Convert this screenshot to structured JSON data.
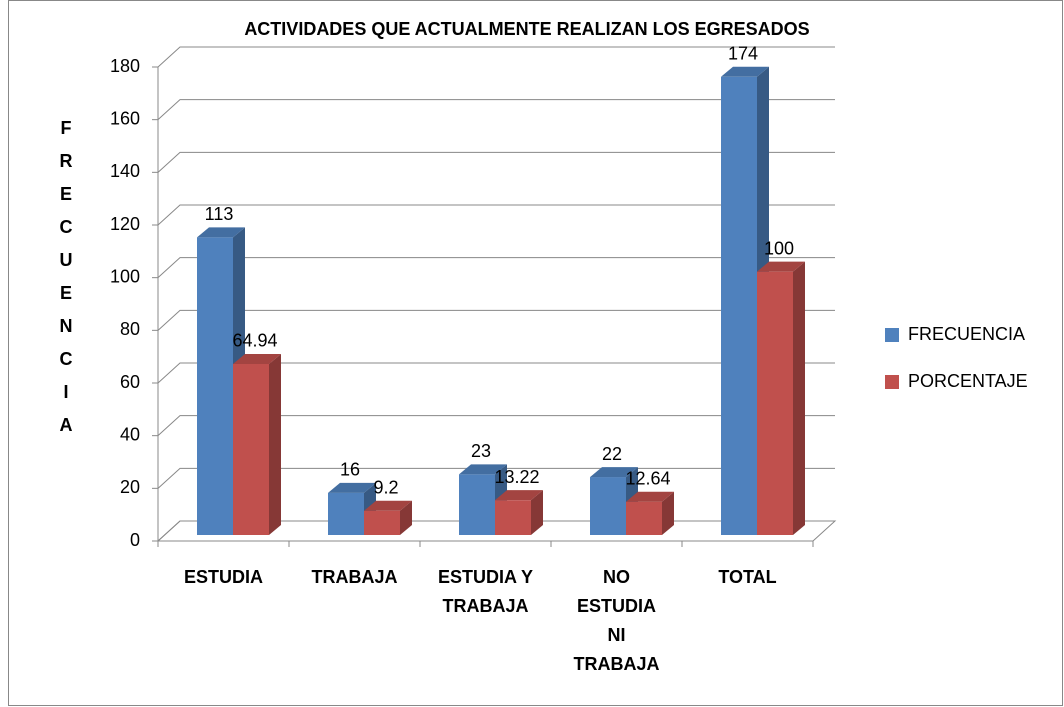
{
  "chart_data": {
    "type": "bar3d",
    "title": "ACTIVIDADES QUE ACTUALMENTE REALIZAN LOS EGRESADOS",
    "y_label": "FRECUENCIA",
    "categories": [
      "ESTUDIA",
      "TRABAJA",
      "ESTUDIA Y\nTRABAJA",
      "NO\nESTUDIA\nNI\nTRABAJA",
      "TOTAL"
    ],
    "series": [
      {
        "name": "FRECUENCIA",
        "color": "#4f81bd",
        "values": [
          113,
          16,
          23,
          22,
          174
        ]
      },
      {
        "name": "PORCENTAJE",
        "color": "#c0504d",
        "values": [
          64.94,
          9.2,
          13.22,
          12.64,
          100
        ]
      }
    ],
    "ylim": [
      0,
      180
    ],
    "yticks": [
      0,
      20,
      40,
      60,
      80,
      100,
      120,
      140,
      160,
      180
    ],
    "grid": true,
    "legend": "right"
  }
}
